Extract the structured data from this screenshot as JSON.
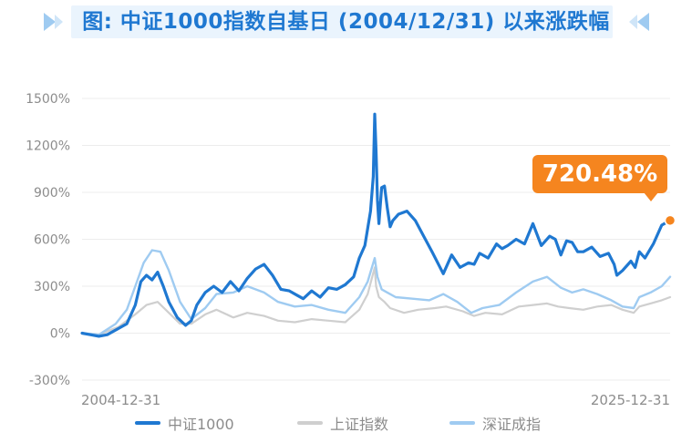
{
  "title": "图: 中证1000指数自基日 (2004/12/31) 以来涨跌幅",
  "callout_label": "720.48%",
  "colors": {
    "zz1000": "#1f78d1",
    "sh": "#cfcfcf",
    "sz": "#9fcbf1",
    "accent": "#f5851f",
    "title": "#1f78d1"
  },
  "chart_data": {
    "type": "line",
    "title": "图: 中证1000指数自基日 (2004/12/31) 以来涨跌幅",
    "xlabel": "",
    "ylabel": "",
    "x_tick_labels": [
      "2004-12-31",
      "2025-12-31"
    ],
    "y_tick_labels": [
      "-300%",
      "0%",
      "300%",
      "600%",
      "900%",
      "1200%",
      "1500%"
    ],
    "y_ticks": [
      -300,
      0,
      300,
      600,
      900,
      1200,
      1500
    ],
    "ylim": [
      -300,
      1500
    ],
    "xlim": [
      2005.0,
      2026.0
    ],
    "grid": true,
    "legend_position": "bottom",
    "series": [
      {
        "name": "中证1000",
        "color": "#1f78d1",
        "x": [
          2005.0,
          2005.3,
          2005.6,
          2005.9,
          2006.3,
          2006.6,
          2006.9,
          2007.1,
          2007.3,
          2007.5,
          2007.7,
          2007.9,
          2008.1,
          2008.4,
          2008.7,
          2008.9,
          2009.1,
          2009.4,
          2009.7,
          2010.0,
          2010.3,
          2010.6,
          2010.9,
          2011.2,
          2011.5,
          2011.8,
          2012.1,
          2012.4,
          2012.7,
          2012.9,
          2013.2,
          2013.5,
          2013.8,
          2014.1,
          2014.4,
          2014.7,
          2014.9,
          2015.1,
          2015.3,
          2015.4,
          2015.45,
          2015.5,
          2015.55,
          2015.6,
          2015.7,
          2015.8,
          2015.9,
          2016.0,
          2016.1,
          2016.3,
          2016.6,
          2016.9,
          2017.2,
          2017.5,
          2017.9,
          2018.2,
          2018.5,
          2018.8,
          2019.0,
          2019.2,
          2019.5,
          2019.8,
          2020.0,
          2020.2,
          2020.5,
          2020.8,
          2021.1,
          2021.4,
          2021.7,
          2021.9,
          2022.1,
          2022.3,
          2022.5,
          2022.7,
          2022.9,
          2023.2,
          2023.5,
          2023.8,
          2024.0,
          2024.1,
          2024.3,
          2024.6,
          2024.75,
          2024.9,
          2025.1,
          2025.4,
          2025.7,
          2026.0
        ],
        "y": [
          0,
          -10,
          -20,
          -10,
          30,
          60,
          180,
          330,
          370,
          340,
          390,
          300,
          200,
          100,
          50,
          80,
          180,
          260,
          300,
          260,
          330,
          270,
          350,
          410,
          440,
          370,
          280,
          270,
          240,
          220,
          270,
          230,
          290,
          280,
          310,
          360,
          480,
          560,
          780,
          1000,
          1400,
          1160,
          850,
          700,
          930,
          940,
          800,
          680,
          720,
          760,
          780,
          720,
          620,
          520,
          380,
          500,
          420,
          450,
          440,
          510,
          480,
          570,
          540,
          560,
          600,
          570,
          700,
          560,
          620,
          600,
          500,
          590,
          580,
          520,
          520,
          550,
          490,
          510,
          440,
          370,
          400,
          460,
          420,
          520,
          480,
          570,
          690,
          720.48
        ]
      },
      {
        "name": "上证指数",
        "color": "#cfcfcf",
        "x": [
          2005.0,
          2005.6,
          2006.3,
          2006.9,
          2007.3,
          2007.7,
          2008.1,
          2008.5,
          2008.9,
          2009.4,
          2009.8,
          2010.4,
          2010.9,
          2011.5,
          2012.0,
          2012.6,
          2013.2,
          2013.8,
          2014.4,
          2014.9,
          2015.2,
          2015.45,
          2015.5,
          2015.6,
          2015.8,
          2016.0,
          2016.5,
          2017.0,
          2017.6,
          2018.0,
          2018.6,
          2019.0,
          2019.4,
          2020.0,
          2020.6,
          2021.1,
          2021.6,
          2022.0,
          2022.4,
          2022.9,
          2023.4,
          2023.9,
          2024.3,
          2024.7,
          2024.9,
          2025.3,
          2025.7,
          2026.0
        ],
        "y": [
          0,
          -10,
          40,
          120,
          180,
          200,
          130,
          60,
          60,
          120,
          150,
          100,
          130,
          110,
          80,
          70,
          90,
          80,
          70,
          150,
          250,
          420,
          300,
          230,
          200,
          160,
          130,
          150,
          160,
          170,
          140,
          110,
          130,
          120,
          170,
          180,
          190,
          170,
          160,
          150,
          170,
          180,
          150,
          130,
          170,
          190,
          210,
          230
        ]
      },
      {
        "name": "深证成指",
        "color": "#9fcbf1",
        "x": [
          2005.0,
          2005.6,
          2006.2,
          2006.6,
          2006.9,
          2007.2,
          2007.5,
          2007.8,
          2008.1,
          2008.5,
          2008.9,
          2009.4,
          2009.8,
          2010.4,
          2010.9,
          2011.5,
          2012.0,
          2012.6,
          2013.2,
          2013.8,
          2014.4,
          2014.9,
          2015.2,
          2015.45,
          2015.55,
          2015.7,
          2015.9,
          2016.2,
          2016.8,
          2017.4,
          2017.9,
          2018.4,
          2018.9,
          2019.3,
          2019.9,
          2020.5,
          2021.1,
          2021.6,
          2022.1,
          2022.5,
          2022.9,
          2023.4,
          2023.9,
          2024.3,
          2024.7,
          2024.9,
          2025.3,
          2025.7,
          2026.0
        ],
        "y": [
          0,
          -10,
          60,
          150,
          300,
          450,
          530,
          520,
          400,
          200,
          90,
          160,
          250,
          260,
          300,
          260,
          200,
          170,
          180,
          150,
          130,
          230,
          330,
          480,
          360,
          280,
          260,
          230,
          220,
          210,
          250,
          200,
          130,
          160,
          180,
          260,
          330,
          360,
          290,
          260,
          280,
          250,
          210,
          170,
          160,
          230,
          260,
          300,
          360
        ]
      }
    ]
  }
}
